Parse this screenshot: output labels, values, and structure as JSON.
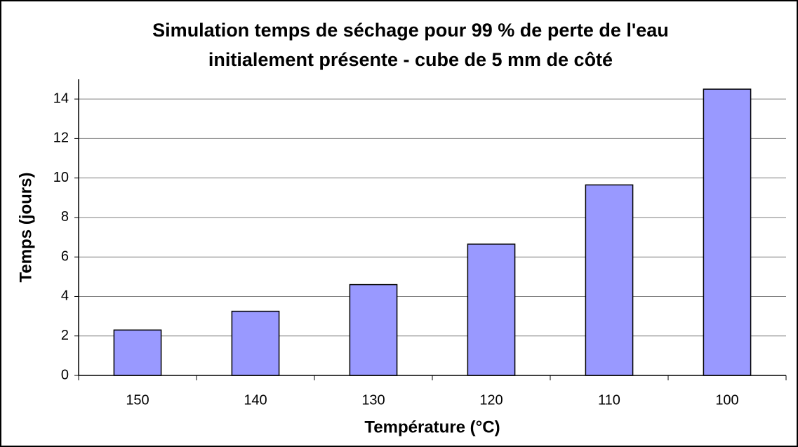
{
  "chart_data": {
    "type": "bar",
    "title": [
      "Simulation temps de séchage pour 99 % de perte de l'eau",
      "initialement présente - cube de 5 mm de côté"
    ],
    "x_label": "Température (°C)",
    "y_label": "Temps (jours)",
    "categories": [
      "150",
      "140",
      "130",
      "120",
      "110",
      "100"
    ],
    "values": [
      2.3,
      3.25,
      4.6,
      6.65,
      9.65,
      14.5
    ],
    "color": "#9999ff",
    "ylim": [
      0,
      15
    ],
    "yticks": [
      0,
      2,
      4,
      6,
      8,
      10,
      12,
      14
    ],
    "grid": true
  }
}
